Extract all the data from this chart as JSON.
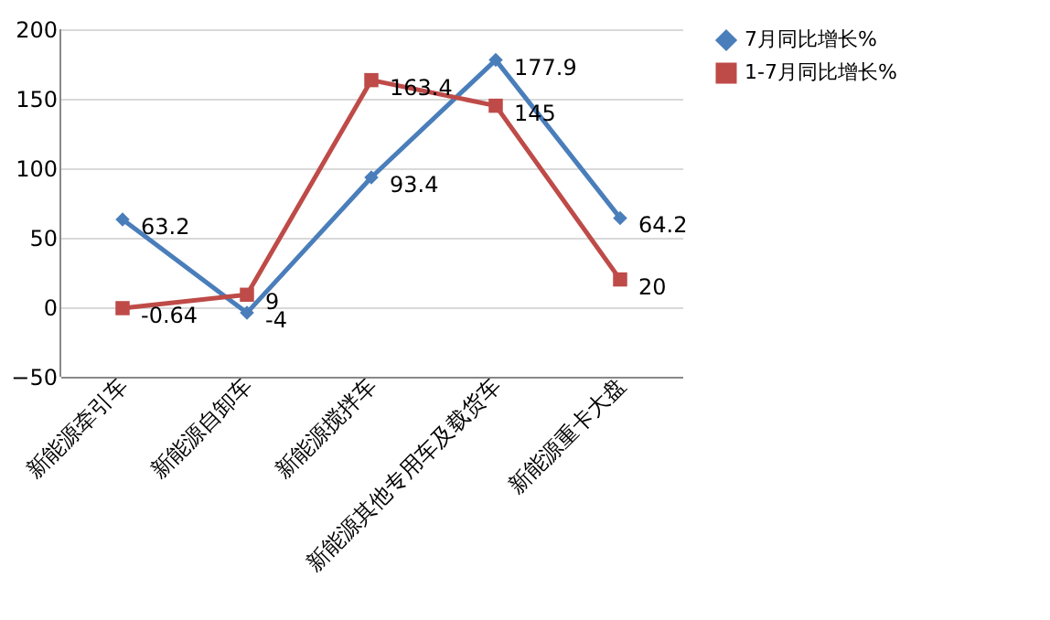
{
  "chart_data": {
    "type": "line",
    "categories": [
      "新能源牵引车",
      "新能源自卸车",
      "新能源搅拌车",
      "新能源其他专用车及载货车",
      "新能源重卡大盘"
    ],
    "series": [
      {
        "name": "7月同比增长%",
        "color": "#4a7ebb",
        "marker": "diamond",
        "values": [
          63.2,
          -4,
          93.4,
          177.9,
          64.2
        ]
      },
      {
        "name": "1-7月同比增长%",
        "color": "#be4b48",
        "marker": "square",
        "values": [
          -0.64,
          9,
          163.4,
          145,
          20
        ]
      }
    ],
    "ylim": [
      -50,
      200
    ],
    "yticks": [
      -50,
      0,
      50,
      100,
      150,
      200
    ],
    "grid": "y",
    "legend": "right",
    "data_labels": true,
    "line_style": "solid"
  }
}
